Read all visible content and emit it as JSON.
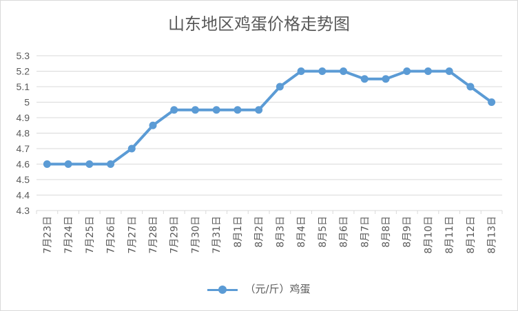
{
  "chart_data": {
    "type": "line",
    "title": "山东地区鸡蛋价格走势图",
    "categories": [
      "7月23日",
      "7月24日",
      "7月25日",
      "7月26日",
      "7月27日",
      "7月28日",
      "7月29日",
      "7月30日",
      "7月31日",
      "8月1日",
      "8月2日",
      "8月3日",
      "8月4日",
      "8月5日",
      "8月6日",
      "8月7日",
      "8月8日",
      "8月9日",
      "8月10日",
      "8月11日",
      "8月12日",
      "8月13日"
    ],
    "series": [
      {
        "name": "（元/斤）鸡蛋",
        "values": [
          4.6,
          4.6,
          4.6,
          4.6,
          4.7,
          4.85,
          4.95,
          4.95,
          4.95,
          4.95,
          4.95,
          5.1,
          5.2,
          5.2,
          5.2,
          5.15,
          5.15,
          5.2,
          5.2,
          5.2,
          5.1,
          5.0
        ],
        "color": "#5b9bd5"
      }
    ],
    "ylim": [
      4.3,
      5.3
    ],
    "yticks": [
      "4.3",
      "4.4",
      "4.5",
      "4.6",
      "4.7",
      "4.8",
      "4.9",
      "5",
      "5.1",
      "5.2",
      "5.3"
    ],
    "grid": true,
    "legend": "bottom",
    "grid_color": "#d9d9d9",
    "text_color": "#595959"
  }
}
